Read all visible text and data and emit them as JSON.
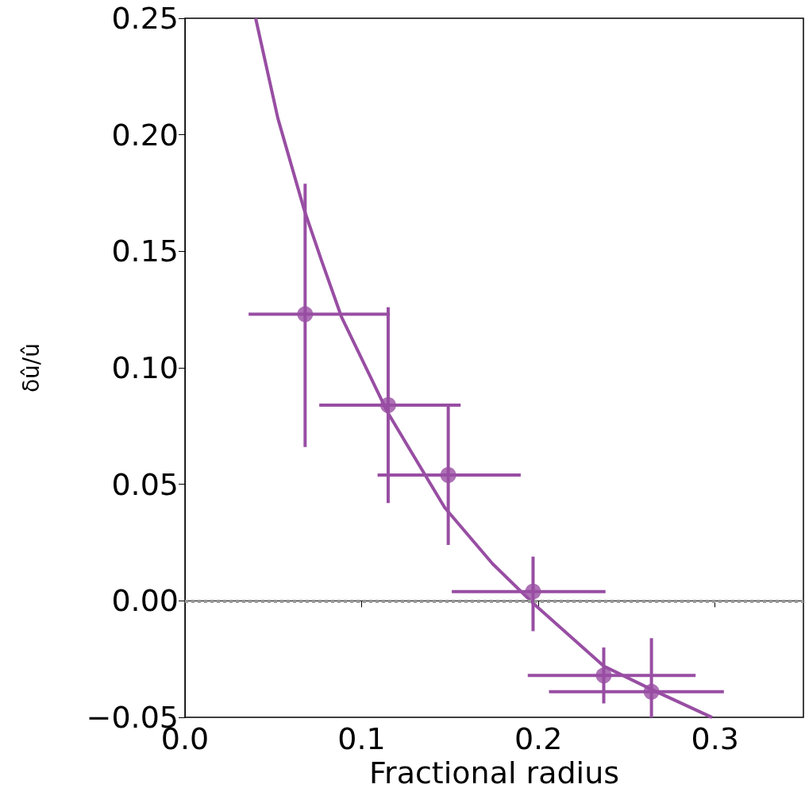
{
  "chart_data": {
    "type": "scatter",
    "xlabel": "Fractional radius",
    "ylabel": "δû/û",
    "xlim": [
      0,
      0.35
    ],
    "ylim": [
      -0.05,
      0.25
    ],
    "xticks": [
      {
        "value": 0,
        "label": "0.0"
      },
      {
        "value": 0.1,
        "label": "0.1"
      },
      {
        "value": 0.2,
        "label": "0.2"
      },
      {
        "value": 0.3,
        "label": "0.3"
      }
    ],
    "yticks": [
      {
        "value": -0.05,
        "label": "−0.05"
      },
      {
        "value": 0,
        "label": "0.00"
      },
      {
        "value": 0.05,
        "label": "0.05"
      },
      {
        "value": 0.1,
        "label": "0.10"
      },
      {
        "value": 0.15,
        "label": "0.15"
      },
      {
        "value": 0.2,
        "label": "0.20"
      },
      {
        "value": 0.25,
        "label": "0.25"
      }
    ],
    "grid": false,
    "marker": "circle",
    "ref_lines": [
      {
        "axis": "y",
        "value": 0,
        "color": "#999999",
        "line_style": "dotted"
      }
    ],
    "series": [
      {
        "type": "scatter",
        "color": "#984ea3",
        "x": [
          0.068,
          0.115,
          0.149,
          0.197,
          0.237,
          0.264
        ],
        "values": [
          0.123,
          0.084,
          0.054,
          0.004,
          -0.032,
          -0.039
        ],
        "errors": [
          [
            0.066,
            0.179
          ],
          [
            0.042,
            0.126
          ],
          [
            0.024,
            0.084
          ],
          [
            -0.013,
            0.019
          ],
          [
            -0.044,
            -0.02
          ],
          [
            -0.05,
            -0.016
          ]
        ],
        "xerrors": [
          [
            0.036,
            0.116
          ],
          [
            0.076,
            0.156
          ],
          [
            0.109,
            0.19
          ],
          [
            0.151,
            0.238
          ],
          [
            0.194,
            0.289
          ],
          [
            0.206,
            0.305
          ]
        ]
      },
      {
        "type": "line",
        "color": "#984ea3",
        "marker": "none",
        "x": [
          0.04,
          0.0526,
          0.0674,
          0.0773,
          0.0885,
          0.1146,
          0.147,
          0.174,
          0.197,
          0.237,
          0.264,
          0.2983
        ],
        "values": [
          0.25,
          0.207,
          0.168,
          0.146,
          0.122,
          0.081,
          0.04,
          0.016,
          -0.001,
          -0.028,
          -0.038,
          -0.05
        ]
      }
    ]
  }
}
